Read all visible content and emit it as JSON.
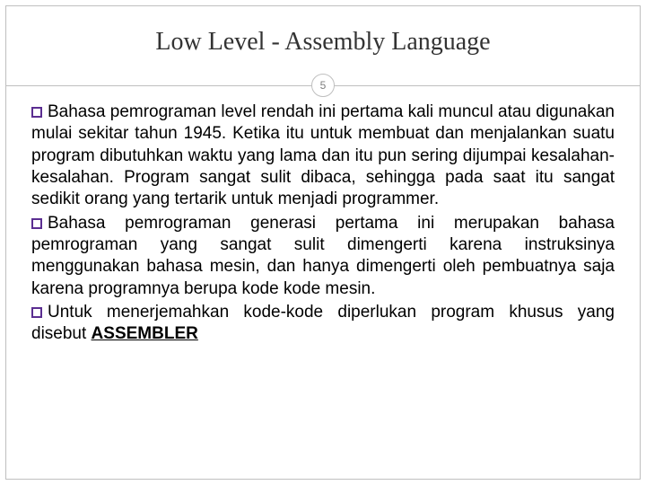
{
  "slide": {
    "title": "Low Level - Assembly Language",
    "page_number": "5",
    "bullets": [
      {
        "text": "Bahasa pemrograman level rendah ini pertama kali muncul atau digunakan mulai sekitar tahun 1945. Ketika itu untuk membuat dan menjalankan suatu program dibutuhkan waktu yang lama dan itu pun sering dijumpai kesalahan-kesalahan. Program sangat sulit dibaca, sehingga pada saat itu sangat sedikit orang yang tertarik untuk menjadi programmer."
      },
      {
        "text": "Bahasa pemrograman generasi pertama ini merupakan bahasa pemrograman yang sangat sulit dimengerti karena instruksinya menggunakan bahasa mesin, dan hanya dimengerti oleh pembuatnya saja karena programnya berupa kode kode mesin."
      },
      {
        "text_prefix": "Untuk menerjemahkan kode-kode diperlukan program khusus yang disebut ",
        "text_bold": "ASSEMBLER"
      }
    ]
  },
  "style": {
    "bullet_border_color": "#5b2e91",
    "title_color": "#333333",
    "frame_color": "#bfbfbf",
    "page_num_color": "#7f7f7f",
    "body_font_size": 19,
    "title_font_size": 28
  }
}
